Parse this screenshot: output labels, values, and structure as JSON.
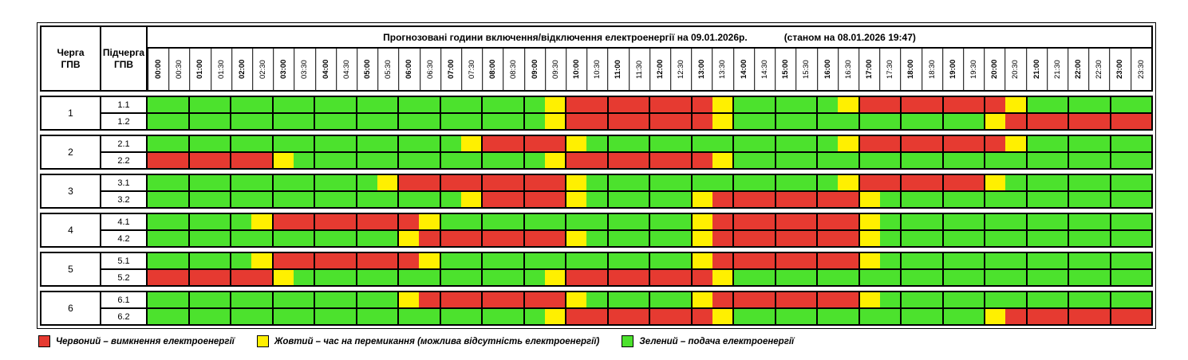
{
  "header": {
    "queue_col": "Черга\nГПВ",
    "subqueue_col": "Підчерга\nГПВ",
    "title": "Прогнозовані години включення/відключення електроенергії на 09.01.2026р.",
    "status": "(станом на 08.01.2026 19:47)"
  },
  "times": [
    "00:00",
    "00:30",
    "01:00",
    "01:30",
    "02:00",
    "02:30",
    "03:00",
    "03:30",
    "04:00",
    "04:30",
    "05:00",
    "05:30",
    "06:00",
    "06:30",
    "07:00",
    "07:30",
    "08:00",
    "08:30",
    "09:00",
    "09:30",
    "10:00",
    "10:30",
    "11:00",
    "11:30",
    "12:00",
    "12:30",
    "13:00",
    "13:30",
    "14:00",
    "14:30",
    "15:00",
    "15:30",
    "16:00",
    "16:30",
    "17:00",
    "17:30",
    "18:00",
    "18:30",
    "19:00",
    "19:30",
    "20:00",
    "20:30",
    "21:00",
    "21:30",
    "22:00",
    "22:30",
    "23:00",
    "23:30"
  ],
  "colors": {
    "red": "#e63a31",
    "yellow": "#fff000",
    "green": "#4ce22d"
  },
  "schedule": {
    "groups": [
      {
        "queue": "1",
        "rows": [
          {
            "label": "1.1",
            "slots": "GGGGGGGGGGGGGGGGGGGYRRRRRRRYGGGGGYRRRRRRRYGGGGGG"
          },
          {
            "label": "1.2",
            "slots": "GGGGGGGGGGGGGGGGGGGYRRRRRRRYGGGGGGGGGGGGYRRRRRRR"
          }
        ]
      },
      {
        "queue": "2",
        "rows": [
          {
            "label": "2.1",
            "slots": "GGGGGGGGGGGGGGGYRRRRYGGGGGGGGGGGGYRRRRRRRYGGGGGG"
          },
          {
            "label": "2.2",
            "slots": "RRRRRRYGGGGGGGGGGGGYRRRRRRRYGGGGGGGGGGGGGGGGGGGG"
          }
        ]
      },
      {
        "queue": "3",
        "rows": [
          {
            "label": "3.1",
            "slots": "GGGGGGGGGGGYRRRRRRRRYGGGGGGGGGGGGYRRRRRRYGGGGGGG"
          },
          {
            "label": "3.2",
            "slots": "GGGGGGGGGGGGGGGYRRRRYGGGGGYRRRRRRRYGGGGGGGGGGGGG"
          }
        ]
      },
      {
        "queue": "4",
        "rows": [
          {
            "label": "4.1",
            "slots": "GGGGGYRRRRRRRYGGGGGGGGGGGGYRRRRRRRYGGGGGGGGGGGGG"
          },
          {
            "label": "4.2",
            "slots": "GGGGGGGGGGGGYRRRRRRRYGGGGGYRRRRRRRYGGGGGGGGGGGGG"
          }
        ]
      },
      {
        "queue": "5",
        "rows": [
          {
            "label": "5.1",
            "slots": "GGGGGYRRRRRRRYGGGGGGGGGGGGYRRRRRRRYGGGGGGGGGGGGG"
          },
          {
            "label": "5.2",
            "slots": "RRRRRRYGGGGGGGGGGGGYRRRRRRRYGGGGGGGGGGGGGGGGGGGG"
          }
        ]
      },
      {
        "queue": "6",
        "rows": [
          {
            "label": "6.1",
            "slots": "GGGGGGGGGGGGYRRRRRRRYGGGGGYRRRRRRRYGGGGGGGGGGGGG"
          },
          {
            "label": "6.2",
            "slots": "GGGGGGGGGGGGGGGGGGGYRRRRRRRYGGGGGGGGGGGGYRRRRRRR"
          }
        ]
      }
    ]
  },
  "legend": {
    "items": [
      {
        "color": "red",
        "label": "Червоний – вимкнення електроенергії"
      },
      {
        "color": "yellow",
        "label": "Жовтий – час на перемикання (можлива відсутність електроенергії)"
      },
      {
        "color": "green",
        "label": "Зелений – подача електроенергії"
      }
    ]
  }
}
